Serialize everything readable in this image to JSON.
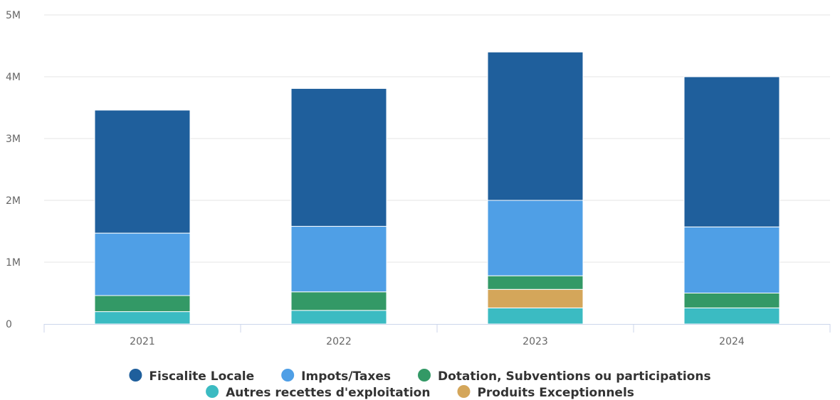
{
  "chart_data": {
    "type": "bar",
    "stacked": true,
    "categories": [
      "2021",
      "2022",
      "2023",
      "2024"
    ],
    "series": [
      {
        "name": "Autres recettes d'exploitation",
        "color": "#3bbbc2",
        "values": [
          200000,
          220000,
          260000,
          260000
        ]
      },
      {
        "name": "Produits Exceptionnels",
        "color": "#d4a65a",
        "values": [
          0,
          0,
          300000,
          0
        ]
      },
      {
        "name": "Dotation, Subventions ou participations",
        "color": "#339966",
        "values": [
          260000,
          300000,
          220000,
          240000
        ]
      },
      {
        "name": "Impots/Taxes",
        "color": "#4f9fe6",
        "values": [
          1010000,
          1060000,
          1220000,
          1070000
        ]
      },
      {
        "name": "Fiscalite Locale",
        "color": "#1f5f9c",
        "values": [
          1990000,
          2230000,
          2400000,
          2430000
        ]
      }
    ],
    "yticks": [
      "0",
      "1M",
      "2M",
      "3M",
      "4M",
      "5M"
    ],
    "ylim": [
      0,
      5000000
    ],
    "grid": true,
    "legend_position": "bottom",
    "legend_order": [
      "Fiscalite Locale",
      "Impots/Taxes",
      "Dotation, Subventions ou participations",
      "Autres recettes d'exploitation",
      "Produits Exceptionnels"
    ]
  }
}
